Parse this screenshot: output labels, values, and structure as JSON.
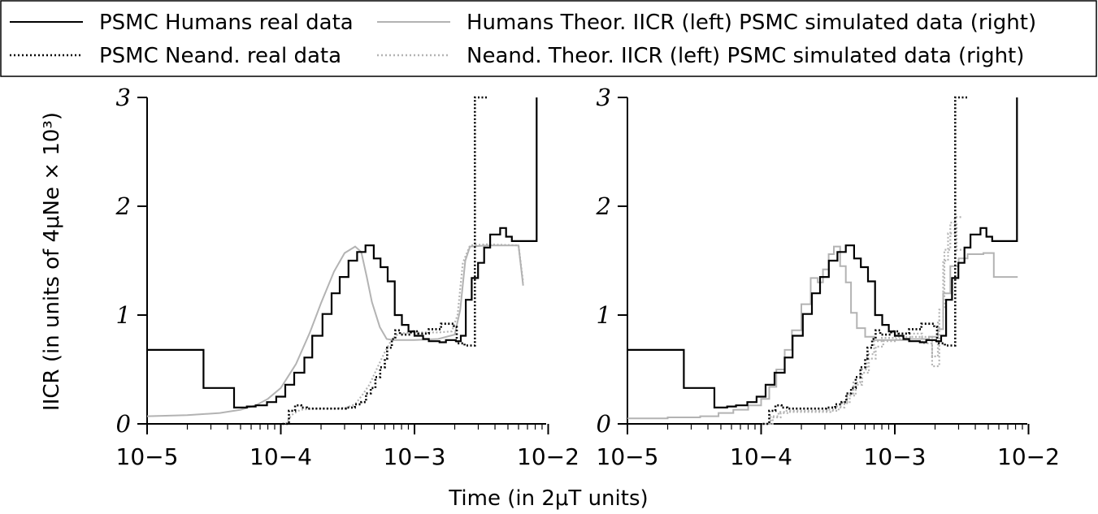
{
  "chart_data": {
    "type": "line",
    "x_scale": "log",
    "xlabel": "Time (in 2μT units)",
    "ylabel": "IICR (in units of 4μNe × 10³)",
    "xlim": [
      1e-05,
      0.01
    ],
    "ylim": [
      0,
      3
    ],
    "x_tick_values": [
      1e-05,
      0.0001,
      0.001,
      0.01
    ],
    "x_tick_labels": [
      "10−5",
      "10−4",
      "10−3",
      "10−2"
    ],
    "y_ticks": [
      0,
      1,
      2,
      3
    ],
    "y_tick_labels": [
      "0",
      "1",
      "2",
      "3"
    ],
    "legend": [
      {
        "label": "PSMC Humans real data",
        "color": "#000000",
        "dash": "solid"
      },
      {
        "label": "PSMC Neand. real data",
        "color": "#000000",
        "dash": "dotted"
      },
      {
        "label": "Humans Theor. IICR (left) PSMC simulated data (right)",
        "color": "#b3b3b3",
        "dash": "solid"
      },
      {
        "label": "Neand. Theor. IICR (left) PSMC simulated data (right)",
        "color": "#b3b3b3",
        "dash": "dotted"
      }
    ],
    "series_styles": {
      "humans_real": {
        "color": "#000000",
        "dash": "solid"
      },
      "neand_real": {
        "color": "#000000",
        "dash": "dotted"
      },
      "humans_theor": {
        "color": "#b3b3b3",
        "dash": "solid"
      },
      "neand_theor": {
        "color": "#b3b3b3",
        "dash": "dotted"
      }
    },
    "real_data": {
      "humans_steps": [
        [
          1e-05,
          0.68
        ],
        [
          2.64e-05,
          0.33
        ],
        [
          4.47e-05,
          0.15
        ],
        [
          5.57e-05,
          0.16
        ],
        [
          6.49e-05,
          0.17
        ],
        [
          7.88e-05,
          0.2
        ],
        [
          9.25e-05,
          0.25
        ],
        [
          0.000108,
          0.36
        ],
        [
          0.000126,
          0.47
        ],
        [
          0.00015,
          0.61
        ],
        [
          0.000172,
          0.81
        ],
        [
          0.000205,
          1.01
        ],
        [
          0.00024,
          1.2
        ],
        [
          0.000276,
          1.35
        ],
        [
          0.000321,
          1.5
        ],
        [
          0.000372,
          1.58
        ],
        [
          0.00043,
          1.64
        ],
        [
          0.000496,
          1.52
        ],
        [
          0.000557,
          1.44
        ],
        [
          0.00063,
          1.31
        ],
        [
          0.000712,
          1.0
        ],
        [
          0.000805,
          0.91
        ],
        [
          0.000901,
          0.85
        ],
        [
          0.001,
          0.81
        ],
        [
          0.00116,
          0.78
        ],
        [
          0.00128,
          0.76
        ],
        [
          0.00154,
          0.75
        ],
        [
          0.00172,
          0.77
        ],
        [
          0.00204,
          0.76
        ],
        [
          0.00222,
          0.81
        ],
        [
          0.00242,
          1.14
        ],
        [
          0.00268,
          1.34
        ],
        [
          0.00299,
          1.48
        ],
        [
          0.00332,
          1.62
        ],
        [
          0.00368,
          1.74
        ],
        [
          0.00437,
          1.8
        ],
        [
          0.00484,
          1.72
        ],
        [
          0.00535,
          1.68
        ],
        [
          0.0082,
          3.0
        ]
      ],
      "humans_end": 0.0082,
      "neand_steps": [
        [
          0.000103,
          0.0
        ],
        [
          0.000115,
          0.12
        ],
        [
          0.000128,
          0.17
        ],
        [
          0.000142,
          0.15
        ],
        [
          0.000157,
          0.14
        ],
        [
          0.000306,
          0.15
        ],
        [
          0.000358,
          0.18
        ],
        [
          0.0004,
          0.2
        ],
        [
          0.000434,
          0.28
        ],
        [
          0.000471,
          0.33
        ],
        [
          0.00051,
          0.43
        ],
        [
          0.000554,
          0.52
        ],
        [
          0.0006,
          0.6
        ],
        [
          0.000625,
          0.7
        ],
        [
          0.000677,
          0.78
        ],
        [
          0.000719,
          0.86
        ],
        [
          0.000778,
          0.82
        ],
        [
          0.000939,
          0.85
        ],
        [
          0.00107,
          0.83
        ],
        [
          0.00128,
          0.87
        ],
        [
          0.00158,
          0.92
        ],
        [
          0.00197,
          0.89
        ],
        [
          0.00207,
          0.74
        ],
        [
          0.00237,
          0.72
        ],
        [
          0.00283,
          3.0
        ]
      ],
      "neand_end": 0.00348
    },
    "left_theoretical": {
      "humans_curve": [
        [
          1e-05,
          0.07
        ],
        [
          2e-05,
          0.08
        ],
        [
          3.5e-05,
          0.1
        ],
        [
          5e-05,
          0.13
        ],
        [
          6.5e-05,
          0.17
        ],
        [
          8e-05,
          0.23
        ],
        [
          0.0001,
          0.33
        ],
        [
          0.00013,
          0.55
        ],
        [
          0.000165,
          0.84
        ],
        [
          0.0002,
          1.11
        ],
        [
          0.00025,
          1.4
        ],
        [
          0.0003,
          1.57
        ],
        [
          0.00036,
          1.63
        ],
        [
          0.0004,
          1.58
        ],
        [
          0.00044,
          1.35
        ],
        [
          0.00048,
          1.12
        ],
        [
          0.00055,
          0.89
        ],
        [
          0.00062,
          0.78
        ],
        [
          0.0007,
          0.77
        ],
        [
          0.001,
          0.77
        ],
        [
          0.0015,
          0.78
        ],
        [
          0.002,
          0.82
        ],
        [
          0.0022,
          1.05
        ],
        [
          0.0024,
          1.5
        ],
        [
          0.0026,
          1.63
        ],
        [
          0.0035,
          1.64
        ],
        [
          0.006,
          1.64
        ],
        [
          0.0065,
          1.27
        ]
      ],
      "neand_curve": [
        [
          0.000109,
          0.0
        ],
        [
          0.00012,
          0.08
        ],
        [
          0.00014,
          0.13
        ],
        [
          0.00018,
          0.14
        ],
        [
          0.00025,
          0.14
        ],
        [
          0.00031,
          0.15
        ],
        [
          0.00036,
          0.18
        ],
        [
          0.00041,
          0.27
        ],
        [
          0.00046,
          0.36
        ],
        [
          0.00052,
          0.5
        ],
        [
          0.0006,
          0.66
        ],
        [
          0.00068,
          0.78
        ],
        [
          0.00076,
          0.83
        ],
        [
          0.001,
          0.84
        ],
        [
          0.0015,
          0.84
        ],
        [
          0.0019,
          0.85
        ],
        [
          0.0021,
          1.0
        ],
        [
          0.0023,
          1.48
        ],
        [
          0.0026,
          1.64
        ],
        [
          0.0035,
          1.65
        ],
        [
          0.006,
          1.64
        ],
        [
          0.0065,
          1.3
        ]
      ]
    },
    "right_simulated": {
      "humans_sim_steps": [
        [
          1e-05,
          0.05
        ],
        [
          2e-05,
          0.06
        ],
        [
          3.5e-05,
          0.07
        ],
        [
          4.8e-05,
          0.1
        ],
        [
          6.2e-05,
          0.13
        ],
        [
          8e-05,
          0.17
        ],
        [
          0.0001,
          0.23
        ],
        [
          0.000115,
          0.34
        ],
        [
          0.00013,
          0.5
        ],
        [
          0.00015,
          0.68
        ],
        [
          0.00017,
          0.86
        ],
        [
          0.0002,
          1.1
        ],
        [
          0.000235,
          1.34
        ],
        [
          0.000265,
          1.3
        ],
        [
          0.00029,
          1.42
        ],
        [
          0.00032,
          1.56
        ],
        [
          0.00035,
          1.63
        ],
        [
          0.00039,
          1.45
        ],
        [
          0.00043,
          1.3
        ],
        [
          0.00047,
          1.02
        ],
        [
          0.00052,
          0.88
        ],
        [
          0.0006,
          0.8
        ],
        [
          0.0007,
          0.77
        ],
        [
          0.0013,
          0.78
        ],
        [
          0.0018,
          0.8
        ],
        [
          0.0021,
          0.87
        ],
        [
          0.0023,
          1.2
        ],
        [
          0.0026,
          1.45
        ],
        [
          0.003,
          1.52
        ],
        [
          0.0035,
          1.56
        ],
        [
          0.0046,
          1.57
        ],
        [
          0.0055,
          1.35
        ]
      ],
      "humans_sim_end": 0.0083,
      "neand_sim_a": [
        [
          0.000102,
          0.0
        ],
        [
          0.000118,
          0.07
        ],
        [
          0.000135,
          0.11
        ],
        [
          0.000155,
          0.12
        ],
        [
          0.0002,
          0.12
        ],
        [
          0.00031,
          0.13
        ],
        [
          0.00036,
          0.16
        ],
        [
          0.0004,
          0.2
        ],
        [
          0.00044,
          0.28
        ],
        [
          0.00049,
          0.38
        ],
        [
          0.00055,
          0.5
        ],
        [
          0.00062,
          0.64
        ],
        [
          0.0007,
          0.76
        ],
        [
          0.0008,
          0.79
        ],
        [
          0.001,
          0.8
        ],
        [
          0.0013,
          0.83
        ],
        [
          0.0016,
          0.8
        ],
        [
          0.0019,
          0.62
        ],
        [
          0.0021,
          0.95
        ],
        [
          0.0023,
          1.5
        ],
        [
          0.0025,
          1.75
        ],
        [
          0.0028,
          1.9
        ]
      ],
      "neand_sim_a_end": 0.0032,
      "neand_sim_b": [
        [
          0.000106,
          0.0
        ],
        [
          0.000122,
          0.06
        ],
        [
          0.00014,
          0.1
        ],
        [
          0.00016,
          0.11
        ],
        [
          0.00021,
          0.11
        ],
        [
          0.00033,
          0.12
        ],
        [
          0.00038,
          0.15
        ],
        [
          0.00042,
          0.19
        ],
        [
          0.00046,
          0.26
        ],
        [
          0.00051,
          0.36
        ],
        [
          0.00057,
          0.47
        ],
        [
          0.00064,
          0.6
        ],
        [
          0.00072,
          0.71
        ],
        [
          0.00082,
          0.76
        ],
        [
          0.001,
          0.78
        ],
        [
          0.0013,
          0.8
        ],
        [
          0.0016,
          0.74
        ],
        [
          0.0019,
          0.53
        ],
        [
          0.00215,
          1.05
        ],
        [
          0.00235,
          1.6
        ],
        [
          0.0026,
          1.85
        ],
        [
          0.0029,
          1.6
        ]
      ],
      "neand_sim_b_end": 0.0033
    }
  }
}
